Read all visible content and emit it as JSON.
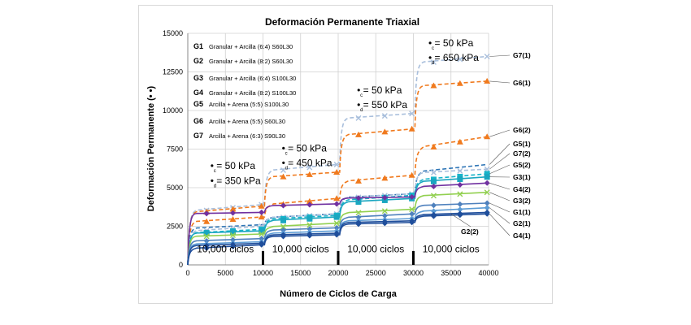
{
  "chart_data": {
    "type": "line",
    "title": "Deformación Permanente Triaxial",
    "xlabel": "Número de Ciclos de Carga",
    "ylabel": "Deformación Permanente (• •)",
    "xlim": [
      0,
      40000
    ],
    "ylim": [
      0,
      15000
    ],
    "xticks": [
      "0",
      "5000",
      "10000",
      "15000",
      "20000",
      "25000",
      "30000",
      "35000",
      "40000"
    ],
    "yticks": [
      "0",
      "2500",
      "5000",
      "7500",
      "10000",
      "12500",
      "15000"
    ],
    "grid": true,
    "legend_position": "top-left",
    "legend": [
      {
        "code": "G1",
        "desc": "Granular + Arcilla (6:4) S60L30"
      },
      {
        "code": "G2",
        "desc": "Granular + Arcilla (8:2) S60L30"
      },
      {
        "code": "G3",
        "desc": "Granular + Arcilla (6:4) S100L30"
      },
      {
        "code": "G4",
        "desc": "Granular + Arcilla (8:2) S100L30"
      },
      {
        "code": "G5",
        "desc": "Arcilla + Arena (5:5) S100L30"
      },
      {
        "code": "G6",
        "desc": "Arcilla + Arena (5:5) S60L30"
      },
      {
        "code": "G7",
        "desc": "Arcilla + Arena (6:3) S90L30"
      }
    ],
    "phases": [
      {
        "label": "10,000 ciclos",
        "stress_c": "• = 50 kPa",
        "stress_d": "• = 350 kPa"
      },
      {
        "label": "10,000 ciclos",
        "stress_c": "• = 50 kPa",
        "stress_d": "• = 450 kPa"
      },
      {
        "label": "10,000 ciclos",
        "stress_c": "• = 50 kPa",
        "stress_d": "• = 550 kPa"
      },
      {
        "label": "10,000 ciclos",
        "stress_c": "• = 50 kPa",
        "stress_d": "• = 650 kPa"
      }
    ],
    "stress_subscripts": {
      "c": "c",
      "d": "d"
    },
    "series": [
      {
        "name": "G7(1)",
        "color": "#a9bfdc",
        "dash": true,
        "marker": "x",
        "values": [
          3400,
          3900,
          6000,
          6500,
          9400,
          9800,
          13000,
          13500
        ]
      },
      {
        "name": "G6(1)",
        "color": "#f07a1e",
        "dash": true,
        "marker": "triangle",
        "values": [
          3300,
          3800,
          5600,
          6000,
          8300,
          8800,
          11500,
          11900
        ]
      },
      {
        "name": "G6(2)",
        "color": "#f07a1e",
        "dash": true,
        "marker": "triangle",
        "values": [
          2700,
          3100,
          3800,
          4300,
          5300,
          5800,
          7400,
          8300
        ]
      },
      {
        "name": "G5(1)",
        "color": "#2e75b6",
        "dash": true,
        "marker": "none",
        "values": [
          2300,
          2600,
          3000,
          3300,
          4300,
          4600,
          5900,
          6500
        ]
      },
      {
        "name": "G7(2)",
        "color": "#a9bfdc",
        "dash": true,
        "marker": "x",
        "values": [
          2100,
          2500,
          3000,
          3300,
          4300,
          4600,
          5900,
          6200
        ]
      },
      {
        "name": "G5(2)",
        "color": "#17b4c9",
        "dash": true,
        "marker": "square",
        "values": [
          2000,
          2300,
          2900,
          3200,
          4100,
          4500,
          5400,
          5900
        ]
      },
      {
        "name": "G3(1)",
        "color": "#1aa6c0",
        "dash": false,
        "marker": "square",
        "values": [
          2000,
          2200,
          2800,
          3100,
          4000,
          4300,
          5300,
          5700
        ]
      },
      {
        "name": "G4(2)",
        "color": "#7030a0",
        "dash": false,
        "marker": "diamond",
        "values": [
          3300,
          3400,
          3800,
          3950,
          4300,
          4400,
          5000,
          5300
        ]
      },
      {
        "name": "G3(2)",
        "color": "#92d050",
        "dash": false,
        "marker": "x",
        "values": [
          1800,
          2000,
          2400,
          2700,
          3300,
          3600,
          4400,
          4700
        ]
      },
      {
        "name": "G1(1)",
        "color": "#4f81bd",
        "dash": false,
        "marker": "diamond",
        "values": [
          1500,
          1700,
          2200,
          2400,
          3000,
          3300,
          3800,
          4000
        ]
      },
      {
        "name": "G2(1)",
        "color": "#5b9bd5",
        "dash": false,
        "marker": "diamond",
        "values": [
          1300,
          1500,
          2000,
          2200,
          2800,
          3000,
          3400,
          3700
        ]
      },
      {
        "name": "G4(1)",
        "color": "#1f4e9b",
        "dash": false,
        "marker": "diamond",
        "values": [
          1000,
          1300,
          1800,
          1950,
          2600,
          2750,
          3100,
          3300
        ]
      },
      {
        "name": "G2(2)",
        "color": "#1f4e9b",
        "dash": false,
        "marker": "diamond",
        "values": [
          1200,
          1400,
          1900,
          2050,
          2700,
          2850,
          3200,
          3400
        ]
      }
    ],
    "series_label_x": [
      0,
      9800,
      10200,
      19800,
      20200,
      29800,
      30200,
      39800
    ]
  }
}
